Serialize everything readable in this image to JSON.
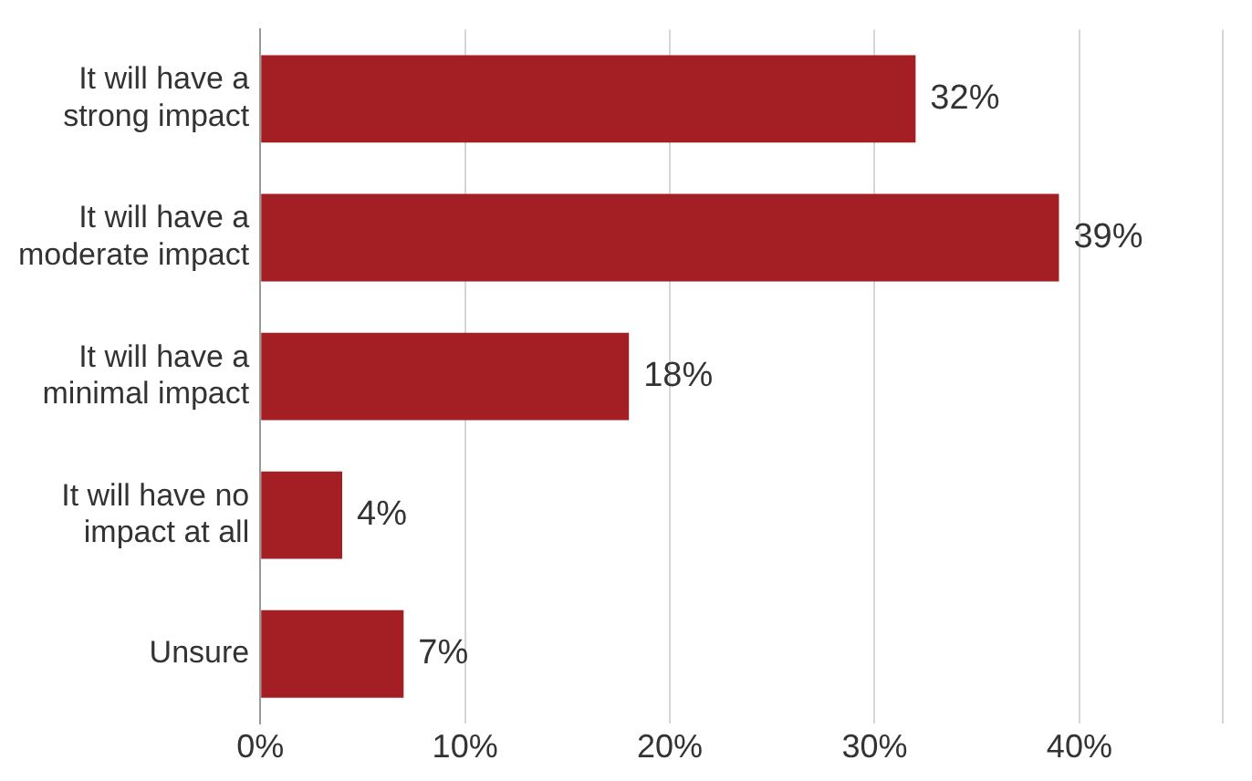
{
  "chart_data": {
    "type": "bar",
    "orientation": "horizontal",
    "categories": [
      "It will have a strong impact",
      "It will have a moderate impact",
      "It will have a minimal impact",
      "It will have no impact at all",
      "Unsure"
    ],
    "values": [
      32,
      39,
      18,
      4,
      7
    ],
    "value_labels": [
      "32%",
      "39%",
      "18%",
      "4%",
      "7%"
    ],
    "color": "#a31f24",
    "xlim": [
      0,
      47
    ],
    "xticks": [
      {
        "value": 0,
        "label": "0%"
      },
      {
        "value": 10,
        "label": "10%"
      },
      {
        "value": 20,
        "label": "20%"
      },
      {
        "value": 30,
        "label": "30%"
      },
      {
        "value": 40,
        "label": "40%"
      },
      {
        "value": 47,
        "label": null
      }
    ],
    "grid": "x",
    "legend": false
  }
}
